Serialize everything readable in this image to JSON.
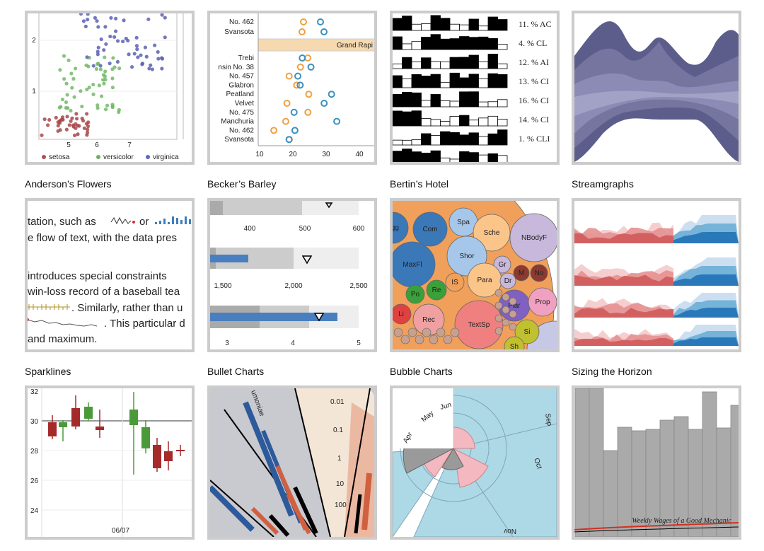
{
  "gallery": {
    "items": [
      {
        "caption": "Anderson’s Flowers",
        "labels": [
          "2",
          "1",
          "5",
          "6",
          "7",
          "setosa",
          "versicolor",
          "virginica"
        ]
      },
      {
        "caption": "Becker’s Barley",
        "labels": [
          "No. 462",
          "Svansota",
          "Grand Rapi",
          "Trebi",
          "nsin No. 38",
          "No. 457",
          "Glabron",
          "Peatland",
          "Velvet",
          "No. 475",
          "Manchuria",
          "No. 462",
          "Svansota",
          "10",
          "20",
          "30",
          "40"
        ]
      },
      {
        "caption": "Bertin’s Hotel",
        "labels": [
          "11. % AC",
          "4. % CL",
          "12. % AI",
          "13. % CI",
          "16. % CI",
          "14. % CI",
          "1. % CLI"
        ]
      },
      {
        "caption": "Streamgraphs",
        "labels": []
      },
      {
        "caption": "Sparklines",
        "labels": [
          "tation, such as",
          "or",
          "e flow of text, with the data pres",
          "introduces special constraints",
          "win-loss record of a baseball tea",
          ". Similarly, rather than u",
          ". This particular d",
          "and maximum."
        ]
      },
      {
        "caption": "Bullet Charts",
        "labels": [
          "400",
          "500",
          "600",
          "1,500",
          "2,000",
          "2,500",
          "3",
          "4",
          "5"
        ]
      },
      {
        "caption": "Bubble Charts",
        "labels": [
          "Agg",
          "Com",
          "Spa",
          "Sche",
          "NBodyF",
          "Shor",
          "MaxFl",
          "Gr",
          "M",
          "No",
          "Para",
          "Dr",
          "IS",
          "Re",
          "Po",
          "Li",
          "Rec",
          "TextSp",
          "Flar",
          "Prop",
          "Si",
          "Sh"
        ]
      },
      {
        "caption": "Sizing the Horizon",
        "labels": []
      },
      {
        "caption": null,
        "labels": [
          "32",
          "30",
          "28",
          "26",
          "24",
          "06/07"
        ]
      },
      {
        "caption": null,
        "labels": [
          "0.01",
          "0.1",
          "1",
          "10",
          "100",
          "umoniae"
        ]
      },
      {
        "caption": null,
        "labels": [
          "Apr",
          "May",
          "Jun",
          "Sep",
          "Oct",
          "Nov"
        ]
      },
      {
        "caption": null,
        "labels": [
          "Weekly Wages of a Good Mechanic"
        ]
      }
    ]
  }
}
